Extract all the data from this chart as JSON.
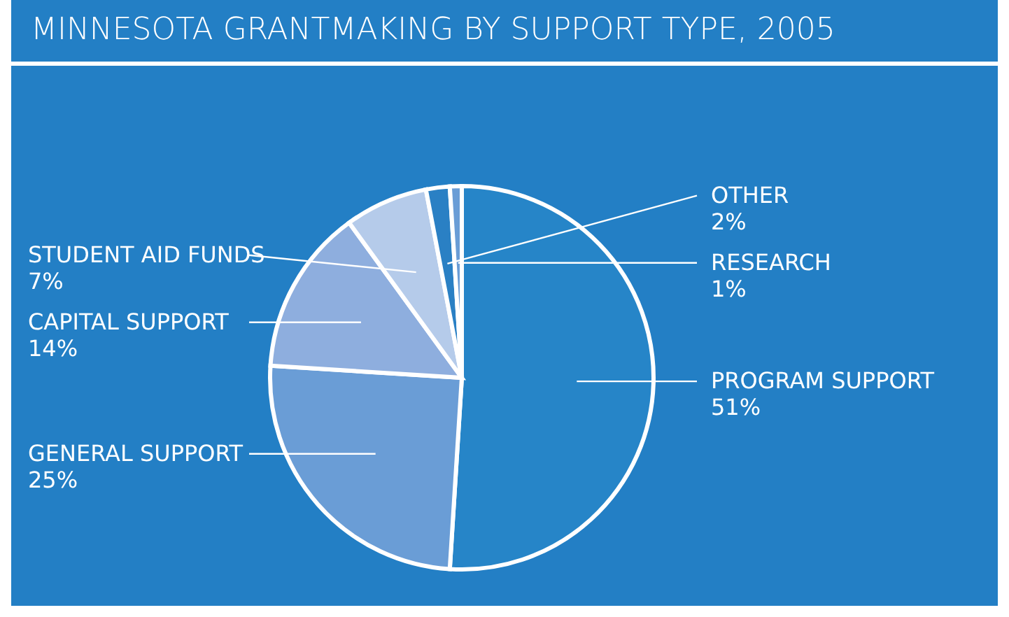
{
  "chart_data": {
    "type": "pie",
    "title": "MINNESOTA GRANTMAKING BY SUPPORT TYPE, 2005",
    "categories": [
      "PROGRAM SUPPORT",
      "GENERAL SUPPORT",
      "CAPITAL SUPPORT",
      "STUDENT AID FUNDS",
      "OTHER",
      "RESEARCH"
    ],
    "values": [
      51,
      25,
      14,
      7,
      2,
      1
    ],
    "colors": [
      "#2685c8",
      "#6a9dd6",
      "#8eaede",
      "#b5cbea",
      "#2a80c4",
      "#6a9dd6"
    ],
    "value_labels": [
      "51%",
      "25%",
      "14%",
      "7%",
      "2%",
      "1%"
    ]
  }
}
